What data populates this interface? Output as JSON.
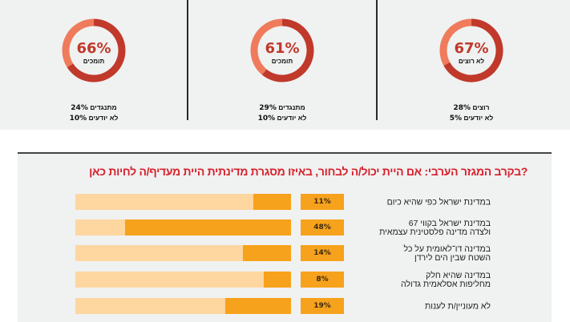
{
  "colors": {
    "ring_dark": "#c0392b",
    "ring_light": "#ef7b5c",
    "bar_fill": "#f7a21c",
    "bar_track": "#fdd6a0",
    "question_red": "#d7202b"
  },
  "chart_data": [
    {
      "type": "pie",
      "variant": "donut",
      "position": "left",
      "main_value": 66,
      "main_label": "66%",
      "main_caption": "תומכים",
      "breakdown": [
        {
          "label": "מתנגדים",
          "value": 24,
          "text": "24%"
        },
        {
          "label": "לא יודעים",
          "value": 10,
          "text": "10%"
        }
      ]
    },
    {
      "type": "pie",
      "variant": "donut",
      "position": "center",
      "main_value": 61,
      "main_label": "61%",
      "main_caption": "תומכים",
      "breakdown": [
        {
          "label": "מתנגדים",
          "value": 29,
          "text": "29%"
        },
        {
          "label": "לא יודעים",
          "value": 10,
          "text": "10%"
        }
      ]
    },
    {
      "type": "pie",
      "variant": "donut",
      "position": "right",
      "main_value": 67,
      "main_label": "67%",
      "main_caption": "לא רוצים",
      "breakdown": [
        {
          "label": "רוצים",
          "value": 28,
          "text": "28%"
        },
        {
          "label": "לא יודעים",
          "value": 5,
          "text": "5%"
        }
      ]
    },
    {
      "type": "bar",
      "orientation": "horizontal",
      "title": "?בקרב המגזר הערבי: אם היית יכול/ה לבחור, באיזו מסגרת מדינתית היית מעדיף/ה לחיות כאן",
      "xlim": [
        0,
        100
      ],
      "categories": [
        [
          "במדינת ישראל כפי שהיא כיום"
        ],
        [
          "במדינת ישראל בקווי 67",
          "ולצדה מדינה פלסטינית עצמאית"
        ],
        [
          "במדינה דו־לאומית על כל",
          "השטח שבין הים לירדן"
        ],
        [
          "במדינה שהיא חלק",
          "מחליפות אסלאמית גדולה"
        ],
        [
          "לא מעוניין/ת לענות"
        ]
      ],
      "values": [
        11,
        48,
        14,
        8,
        19
      ],
      "value_labels": [
        "11%",
        "48%",
        "14%",
        "8%",
        "19%"
      ]
    }
  ]
}
